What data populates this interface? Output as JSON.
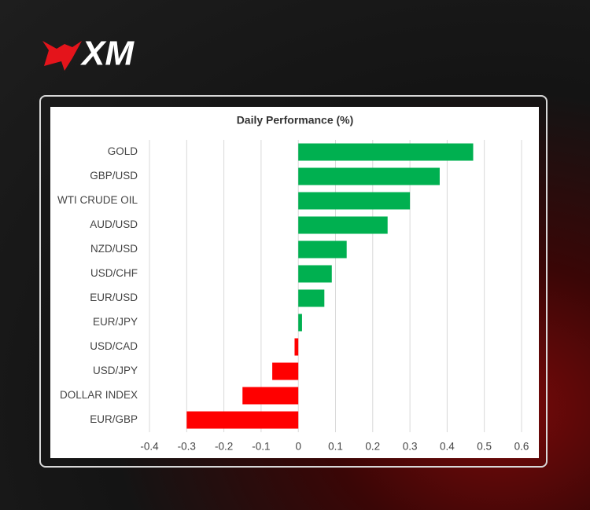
{
  "logo": "XM",
  "chart_data": {
    "type": "bar",
    "orientation": "horizontal",
    "title": "Daily Performance (%)",
    "categories": [
      "GOLD",
      "GBP/USD",
      "WTI CRUDE OIL",
      "AUD/USD",
      "NZD/USD",
      "USD/CHF",
      "EUR/USD",
      "EUR/JPY",
      "USD/CAD",
      "USD/JPY",
      "DOLLAR INDEX",
      "EUR/GBP"
    ],
    "values": [
      0.47,
      0.38,
      0.3,
      0.24,
      0.13,
      0.09,
      0.07,
      0.01,
      -0.01,
      -0.07,
      -0.15,
      -0.3
    ],
    "colors": [
      "#00b050",
      "#00b050",
      "#00b050",
      "#00b050",
      "#00b050",
      "#00b050",
      "#00b050",
      "#00b050",
      "#ff0000",
      "#ff0000",
      "#ff0000",
      "#ff0000"
    ],
    "xlim": [
      -0.4,
      0.6
    ],
    "xticks": [
      -0.4,
      -0.3,
      -0.2,
      -0.1,
      0,
      0.1,
      0.2,
      0.3,
      0.4,
      0.5,
      0.6
    ],
    "grid": true
  }
}
